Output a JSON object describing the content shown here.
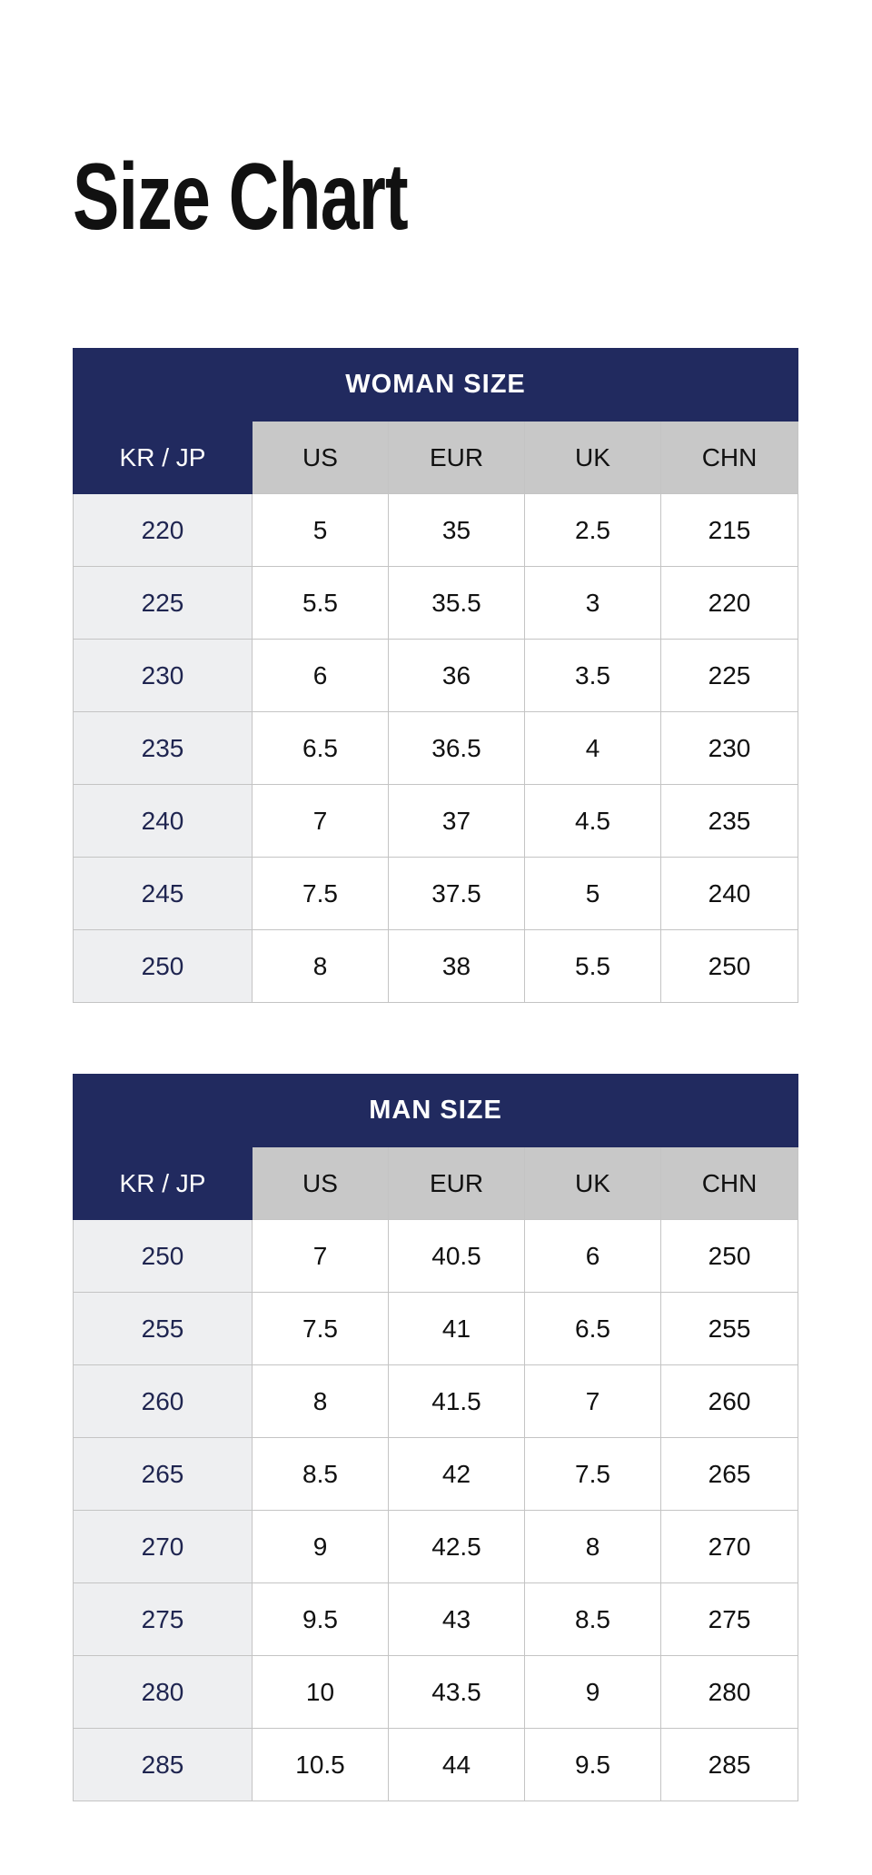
{
  "title": "Size Chart",
  "colors": {
    "navy": "#212a5f",
    "header_gray": "#c8c8c8",
    "key_column": "#eeeff1"
  },
  "columns": [
    "KR / JP",
    "US",
    "EUR",
    "UK",
    "CHN"
  ],
  "tables": [
    {
      "caption": "WOMAN SIZE",
      "rows": [
        [
          "220",
          "5",
          "35",
          "2.5",
          "215"
        ],
        [
          "225",
          "5.5",
          "35.5",
          "3",
          "220"
        ],
        [
          "230",
          "6",
          "36",
          "3.5",
          "225"
        ],
        [
          "235",
          "6.5",
          "36.5",
          "4",
          "230"
        ],
        [
          "240",
          "7",
          "37",
          "4.5",
          "235"
        ],
        [
          "245",
          "7.5",
          "37.5",
          "5",
          "240"
        ],
        [
          "250",
          "8",
          "38",
          "5.5",
          "250"
        ]
      ]
    },
    {
      "caption": "MAN SIZE",
      "rows": [
        [
          "250",
          "7",
          "40.5",
          "6",
          "250"
        ],
        [
          "255",
          "7.5",
          "41",
          "6.5",
          "255"
        ],
        [
          "260",
          "8",
          "41.5",
          "7",
          "260"
        ],
        [
          "265",
          "8.5",
          "42",
          "7.5",
          "265"
        ],
        [
          "270",
          "9",
          "42.5",
          "8",
          "270"
        ],
        [
          "275",
          "9.5",
          "43",
          "8.5",
          "275"
        ],
        [
          "280",
          "10",
          "43.5",
          "9",
          "280"
        ],
        [
          "285",
          "10.5",
          "44",
          "9.5",
          "285"
        ]
      ]
    }
  ]
}
